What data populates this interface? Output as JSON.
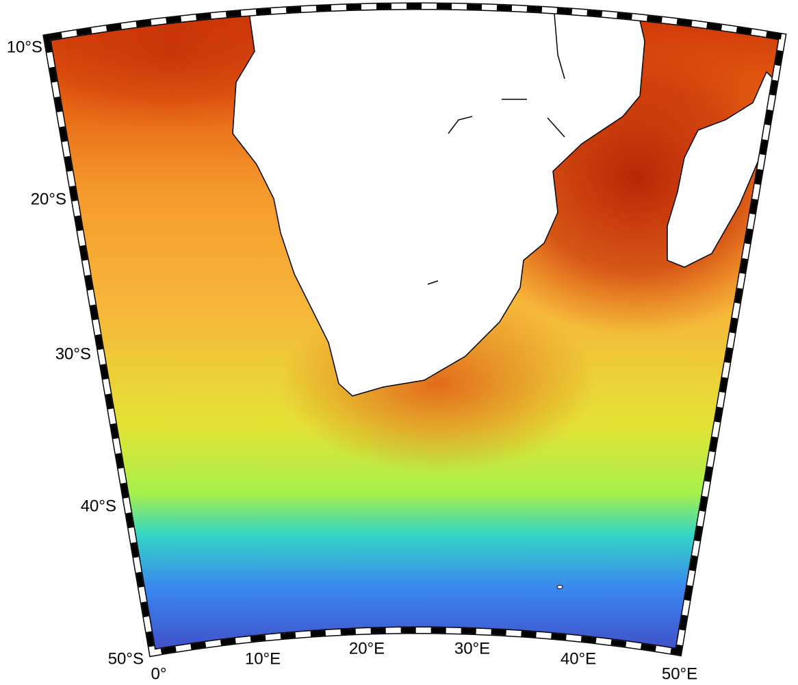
{
  "latitude_labels": [
    "10°S",
    "20°S",
    "30°S",
    "40°S",
    "50°S"
  ],
  "longitude_labels": [
    "0°",
    "10°E",
    "20°E",
    "30°E",
    "40°E",
    "50°E"
  ]
}
